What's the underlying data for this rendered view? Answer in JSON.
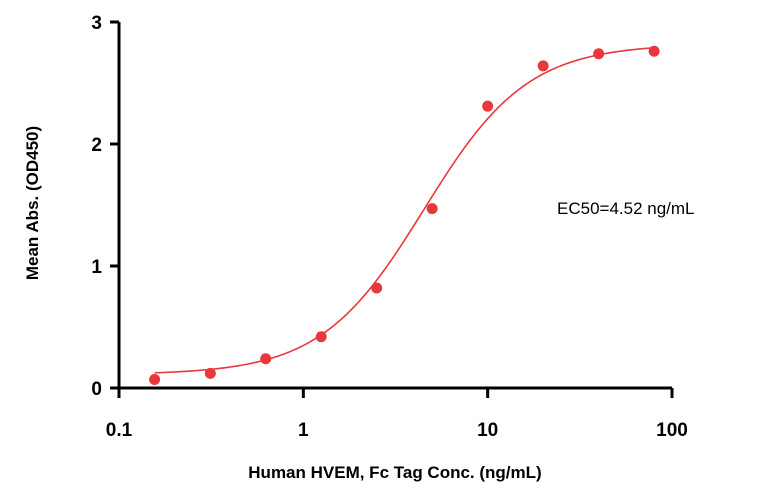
{
  "chart_data": {
    "type": "scatter",
    "xscale": "log",
    "xlim": [
      0.1,
      100
    ],
    "ylim": [
      0,
      3
    ],
    "xlabel": "Human HVEM, Fc Tag Conc. (ng/mL)",
    "ylabel": "Mean Abs. (OD450)",
    "x_ticks": [
      0.1,
      1,
      10,
      100
    ],
    "x_tick_labels": [
      "0.1",
      "1",
      "10",
      "100"
    ],
    "y_ticks": [
      0,
      1,
      2,
      3
    ],
    "y_tick_labels": [
      "0",
      "1",
      "2",
      "3"
    ],
    "grid": false,
    "series": [
      {
        "color": "#e8383d",
        "x": [
          0.156,
          0.313,
          0.625,
          1.25,
          2.5,
          5,
          10,
          20,
          40,
          80
        ],
        "y": [
          0.07,
          0.12,
          0.24,
          0.42,
          0.82,
          1.47,
          2.31,
          2.64,
          2.74,
          2.76
        ]
      }
    ],
    "fit": {
      "model": "4PL",
      "bottom": 0.11,
      "top": 2.82,
      "ec50": 4.52,
      "hill": 1.55,
      "color": "#e8383d"
    },
    "annotation": "EC50=4.52 ng/mL"
  }
}
